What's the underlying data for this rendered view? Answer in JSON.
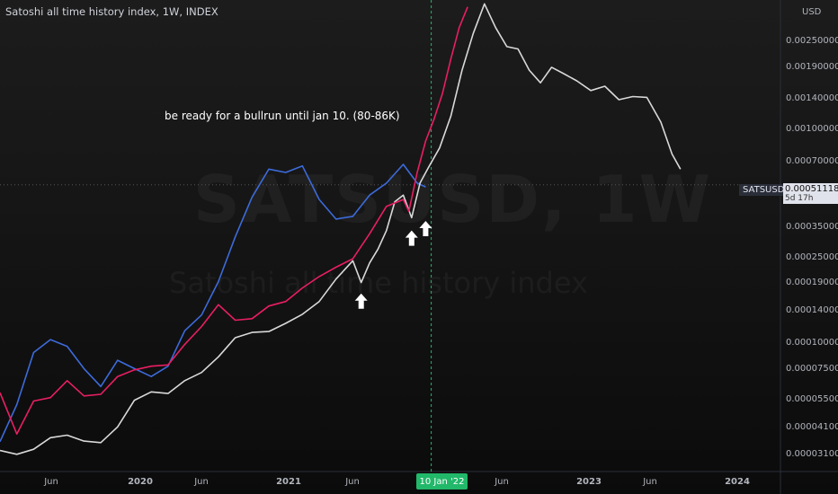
{
  "header": {
    "title": "Satoshi all time history index, 1W, INDEX"
  },
  "watermark": {
    "symbol": "SATSUSD, 1W",
    "description": "Satoshi all time history index"
  },
  "annotation": {
    "text": "be ready for a bullrun until jan 10. (80-86K)"
  },
  "price_scale": {
    "currency": "USD",
    "ticks": [
      "0.00250000",
      "0.00190000",
      "0.00140000",
      "0.00100000",
      "0.00070000",
      "0.00035000",
      "0.00025000",
      "0.00019000",
      "0.00014000",
      "0.00010000",
      "0.00007500",
      "0.00005500",
      "0.00004100",
      "0.00003100"
    ],
    "current_symbol": "SATSUSD",
    "current_price": "0.00051118",
    "countdown": "5d 17h"
  },
  "time_scale": {
    "labels": [
      {
        "text": "Jun",
        "kind": "month"
      },
      {
        "text": "2020",
        "kind": "year"
      },
      {
        "text": "Jun",
        "kind": "month"
      },
      {
        "text": "2021",
        "kind": "year"
      },
      {
        "text": "Jun",
        "kind": "month"
      },
      {
        "text": "Jun",
        "kind": "month"
      },
      {
        "text": "2023",
        "kind": "year"
      },
      {
        "text": "Jun",
        "kind": "month"
      },
      {
        "text": "2024",
        "kind": "year"
      }
    ],
    "highlight": "10 Jan '22"
  },
  "colors": {
    "background": "#131313",
    "white_series": "#d9d9d9",
    "red_series": "#e91e63",
    "blue_series": "#3d6bdb",
    "marker_line": "#21b86a",
    "arrow": "#ffffff"
  },
  "chart_data": {
    "type": "line",
    "scale": "log",
    "ylim": [
      2.8e-05,
      0.0032
    ],
    "xlim": [
      "2019-01-28",
      "2024-06-01"
    ],
    "series": [
      {
        "color": "white",
        "points": [
          [
            "2019-01-28",
            3.38e-05
          ],
          [
            "2019-03-11",
            3.25e-05
          ],
          [
            "2019-04-22",
            3.42e-05
          ],
          [
            "2019-06-03",
            3.85e-05
          ],
          [
            "2019-07-15",
            3.95e-05
          ],
          [
            "2019-08-26",
            3.72e-05
          ],
          [
            "2019-10-07",
            3.66e-05
          ],
          [
            "2019-11-18",
            4.3e-05
          ],
          [
            "2019-12-30",
            5.65e-05
          ],
          [
            "2020-02-10",
            6.15e-05
          ],
          [
            "2020-03-23",
            6.05e-05
          ],
          [
            "2020-05-04",
            6.9e-05
          ],
          [
            "2020-06-15",
            7.5e-05
          ],
          [
            "2020-07-27",
            8.8e-05
          ],
          [
            "2020-09-07",
            0.000107
          ],
          [
            "2020-10-19",
            0.000113
          ],
          [
            "2020-11-30",
            0.000114
          ],
          [
            "2021-01-11",
            0.000124
          ],
          [
            "2021-02-22",
            0.000136
          ],
          [
            "2021-04-05",
            0.000155
          ],
          [
            "2021-05-17",
            0.000195
          ],
          [
            "2021-06-28",
            0.000235
          ],
          [
            "2021-07-19",
            0.000188
          ],
          [
            "2021-08-09",
            0.00023
          ],
          [
            "2021-08-30",
            0.000265
          ],
          [
            "2021-09-20",
            0.00032
          ],
          [
            "2021-10-11",
            0.00043
          ],
          [
            "2021-11-01",
            0.00046
          ],
          [
            "2021-11-22",
            0.000365
          ],
          [
            "2021-12-13",
            0.00052
          ],
          [
            "2022-01-03",
            0.00061
          ],
          [
            "2022-01-31",
            0.000745
          ],
          [
            "2022-02-28",
            0.00103
          ],
          [
            "2022-03-28",
            0.00165
          ],
          [
            "2022-04-25",
            0.0024
          ],
          [
            "2022-05-23",
            0.00325
          ],
          [
            "2022-06-20",
            0.00255
          ],
          [
            "2022-07-18",
            0.0021
          ],
          [
            "2022-08-15",
            0.00205
          ],
          [
            "2022-09-12",
            0.00165
          ],
          [
            "2022-10-10",
            0.00145
          ],
          [
            "2022-11-07",
            0.0017
          ],
          [
            "2022-12-05",
            0.0016
          ],
          [
            "2023-01-09",
            0.00148
          ],
          [
            "2023-02-13",
            0.00134
          ],
          [
            "2023-03-20",
            0.0014
          ],
          [
            "2023-04-24",
            0.00122
          ],
          [
            "2023-05-29",
            0.00126
          ],
          [
            "2023-07-03",
            0.00125
          ],
          [
            "2023-08-07",
            0.00097
          ],
          [
            "2023-09-04",
            0.0007
          ],
          [
            "2023-09-25",
            0.0006
          ]
        ]
      },
      {
        "color": "red",
        "points": [
          [
            "2019-01-28",
            6.1e-05
          ],
          [
            "2019-03-11",
            4e-05
          ],
          [
            "2019-04-22",
            5.6e-05
          ],
          [
            "2019-06-03",
            5.8e-05
          ],
          [
            "2019-07-15",
            6.9e-05
          ],
          [
            "2019-08-26",
            5.9e-05
          ],
          [
            "2019-10-07",
            6e-05
          ],
          [
            "2019-11-18",
            7.2e-05
          ],
          [
            "2019-12-30",
            7.7e-05
          ],
          [
            "2020-02-10",
            8e-05
          ],
          [
            "2020-03-23",
            8.1e-05
          ],
          [
            "2020-05-04",
            0.0001
          ],
          [
            "2020-06-15",
            0.00012
          ],
          [
            "2020-07-27",
            0.00015
          ],
          [
            "2020-09-07",
            0.000128
          ],
          [
            "2020-10-19",
            0.00013
          ],
          [
            "2020-11-30",
            0.000148
          ],
          [
            "2021-01-11",
            0.000155
          ],
          [
            "2021-02-22",
            0.000178
          ],
          [
            "2021-04-05",
            0.0002
          ],
          [
            "2021-05-17",
            0.00022
          ],
          [
            "2021-06-28",
            0.00024
          ],
          [
            "2021-08-09",
            0.00031
          ],
          [
            "2021-09-20",
            0.00041
          ],
          [
            "2021-11-01",
            0.00044
          ],
          [
            "2021-11-15",
            0.00039
          ],
          [
            "2021-12-06",
            0.00058
          ],
          [
            "2021-12-27",
            0.0008
          ],
          [
            "2022-01-17",
            0.001
          ],
          [
            "2022-02-07",
            0.0013
          ],
          [
            "2022-02-28",
            0.00185
          ],
          [
            "2022-03-21",
            0.00255
          ],
          [
            "2022-04-11",
            0.00315
          ]
        ]
      },
      {
        "color": "blue",
        "points": [
          [
            "2019-01-28",
            3.7e-05
          ],
          [
            "2019-03-11",
            5.4e-05
          ],
          [
            "2019-04-22",
            9.2e-05
          ],
          [
            "2019-06-03",
            0.000105
          ],
          [
            "2019-07-15",
            9.8e-05
          ],
          [
            "2019-08-26",
            7.8e-05
          ],
          [
            "2019-10-07",
            6.5e-05
          ],
          [
            "2019-11-18",
            8.5e-05
          ],
          [
            "2019-12-30",
            7.8e-05
          ],
          [
            "2020-02-10",
            7.2e-05
          ],
          [
            "2020-03-23",
            8e-05
          ],
          [
            "2020-05-04",
            0.000115
          ],
          [
            "2020-06-15",
            0.000135
          ],
          [
            "2020-07-27",
            0.00019
          ],
          [
            "2020-09-07",
            0.0003
          ],
          [
            "2020-10-19",
            0.00045
          ],
          [
            "2020-11-30",
            0.0006
          ],
          [
            "2021-01-11",
            0.00058
          ],
          [
            "2021-02-22",
            0.00062
          ],
          [
            "2021-04-05",
            0.00044
          ],
          [
            "2021-05-17",
            0.00036
          ],
          [
            "2021-06-28",
            0.00037
          ],
          [
            "2021-08-09",
            0.00046
          ],
          [
            "2021-09-20",
            0.00052
          ],
          [
            "2021-11-01",
            0.00063
          ],
          [
            "2021-12-06",
            0.00052
          ],
          [
            "2021-12-27",
            0.0005
          ]
        ]
      }
    ],
    "markers": [
      {
        "type": "arrow-up",
        "date": "2021-07-19",
        "value": 0.000155
      },
      {
        "type": "arrow-up",
        "date": "2021-11-22",
        "value": 0.000295
      },
      {
        "type": "arrow-up",
        "date": "2021-12-27",
        "value": 0.000325
      }
    ],
    "vline": {
      "date": "2022-01-10"
    },
    "crosshair_value": 0.00051118
  }
}
